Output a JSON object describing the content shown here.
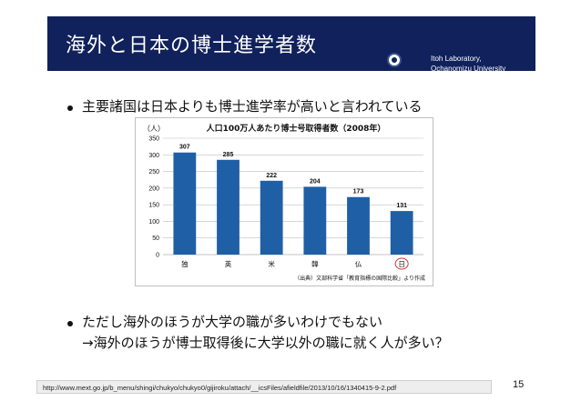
{
  "header": {
    "title": "海外と日本の博士進学者数",
    "lab_line1": "Itoh Laboratory,",
    "lab_line2": "Ochanomizu University",
    "bg_color": "#10215c"
  },
  "bullets": {
    "b1": "主要諸国は日本よりも博士進学率が高いと言われている",
    "b2_line1": "ただし海外のほうが大学の職が多いわけでもない",
    "b2_line2": "→海外のほうが博士取得後に大学以外の職に就く人が多い？"
  },
  "chart_data": {
    "type": "bar",
    "title": "人口100万人あたり博士号取得者数（2008年）",
    "unit_label": "（人）",
    "categories": [
      "独",
      "英",
      "米",
      "韓",
      "仏",
      "日"
    ],
    "values": [
      307,
      285,
      222,
      204,
      173,
      131
    ],
    "ylim": [
      0,
      350
    ],
    "yticks": [
      "0",
      "50",
      "100",
      "150",
      "200",
      "250",
      "300",
      "350"
    ],
    "grid": true,
    "bar_color": "#1f5fa6",
    "highlight_category": "日",
    "highlight_color": "#e03030",
    "source": "（出典）文部科学省「教育指標の国際比較」より作成"
  },
  "footer": {
    "url": "http://www.mext.go.jp/b_menu/shingi/chukyo/chukyo0/gijiroku/attach/__icsFiles/afieldfile/2013/10/16/1340415-9-2.pdf",
    "page": "15"
  }
}
